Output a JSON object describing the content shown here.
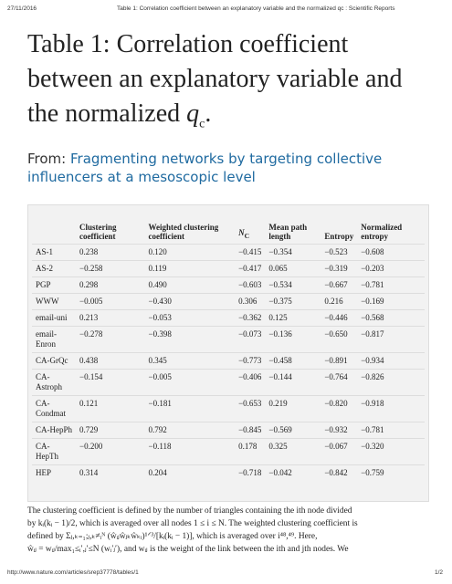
{
  "header": {
    "date": "27/11/2016",
    "page_title": "Table 1: Correlation coefficient between an explanatory variable and the normalized qc : Scientific Reports"
  },
  "title": {
    "text": "Table 1: Correlation coefficient between an explanatory variable and the normalized ",
    "var": "q",
    "sub": "c",
    "end": "."
  },
  "source": {
    "label": "From:",
    "link": "Fragmenting networks by targeting collective influencers at a mesoscopic level"
  },
  "table": {
    "columns": [
      "Clustering coefficient",
      "Weighted clustering coefficient",
      {
        "main": "N",
        "sub": "C"
      },
      "Mean path length",
      "Entropy",
      "Normalized entropy"
    ],
    "rows": [
      [
        "AS-1",
        "0.238",
        "0.120",
        "−0.415",
        "−0.354",
        "−0.523",
        "−0.608"
      ],
      [
        "AS-2",
        "−0.258",
        "0.119",
        "−0.417",
        "0.065",
        "−0.319",
        "−0.203"
      ],
      [
        "PGP",
        "0.298",
        "0.490",
        "−0.603",
        "−0.534",
        "−0.667",
        "−0.781"
      ],
      [
        "WWW",
        "−0.005",
        "−0.430",
        "0.306",
        "−0.375",
        "0.216",
        "−0.169"
      ],
      [
        "email-uni",
        "0.213",
        "−0.053",
        "−0.362",
        "0.125",
        "−0.446",
        "−0.568"
      ],
      [
        "email-Enron",
        "−0.278",
        "−0.398",
        "−0.073",
        "−0.136",
        "−0.650",
        "−0.817"
      ],
      [
        "CA-GrQc",
        "0.438",
        "0.345",
        "−0.773",
        "−0.458",
        "−0.891",
        "−0.934"
      ],
      [
        "CA-Astroph",
        "−0.154",
        "−0.005",
        "−0.406",
        "−0.144",
        "−0.764",
        "−0.826"
      ],
      [
        "CA-Condmat",
        "0.121",
        "−0.181",
        "−0.653",
        "0.219",
        "−0.820",
        "−0.918"
      ],
      [
        "CA-HepPh",
        "0.729",
        "0.792",
        "−0.845",
        "−0.569",
        "−0.932",
        "−0.781"
      ],
      [
        "CA-HepTh",
        "−0.200",
        "−0.118",
        "0.178",
        "0.325",
        "−0.067",
        "−0.320"
      ],
      [
        "HEP",
        "0.314",
        "0.204",
        "−0.718",
        "−0.042",
        "−0.842",
        "−0.759"
      ]
    ]
  },
  "footnote": [
    "The clustering coefficient is defined by the number of triangles containing the ith node divided",
    "by kᵢ(kᵢ − 1)/2, which is averaged over all nodes 1 ≤ i ≤ N. The weighted clustering coefficient is",
    "defined by Σⱼ,ₖ₌₁;ⱼ,ₖ≠ᵢᴺ (ŵᵢⱼŵⱼₖŵₖᵢ)¹ᐟ³/[kᵢ(kᵢ − 1)], which is averaged over i⁴⁸,⁴⁹. Here,",
    "ŵᵢⱼ = wᵢⱼ/max₁≤ᵢ′,ⱼ′≤N (wᵢ′ⱼ′), and wᵢⱼ is the weight of the link between the ith and jth nodes. We"
  ],
  "footer": {
    "url": "http://www.nature.com/articles/srep37778/tables/1",
    "page": "1/2"
  }
}
